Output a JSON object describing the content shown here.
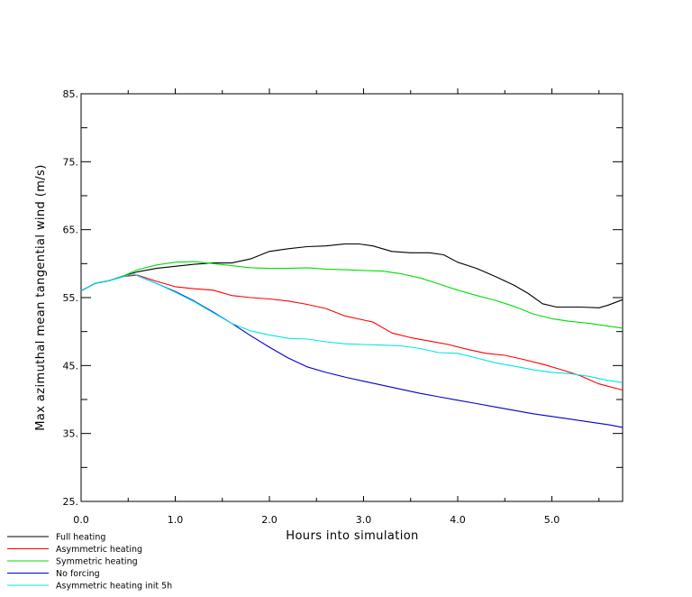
{
  "chart_data": {
    "type": "line",
    "title": "",
    "xlabel": "Hours into simulation",
    "ylabel": "Max azimuthal mean tangential wind (m/s)",
    "xlim": [
      0,
      5.75
    ],
    "ylim": [
      25,
      85
    ],
    "x_tick_labels": [
      "0.0",
      "1.0",
      "2.0",
      "3.0",
      "4.0",
      "5.0"
    ],
    "y_tick_labels": [
      "25.",
      "35.",
      "45.",
      "55.",
      "65.",
      "75.",
      "85."
    ],
    "grid": false,
    "legend_position": "bottom-left",
    "series": [
      {
        "name": "Full heating",
        "color": "#000000",
        "points": [
          [
            0,
            56
          ],
          [
            0.15,
            57.1
          ],
          [
            0.3,
            57.5
          ],
          [
            0.45,
            58.2
          ],
          [
            0.6,
            58.8
          ],
          [
            0.8,
            59.3
          ],
          [
            1.0,
            59.6
          ],
          [
            1.2,
            59.9
          ],
          [
            1.4,
            60.1
          ],
          [
            1.6,
            60.1
          ],
          [
            1.8,
            60.7
          ],
          [
            2.0,
            61.8
          ],
          [
            2.2,
            62.2
          ],
          [
            2.4,
            62.5
          ],
          [
            2.6,
            62.6
          ],
          [
            2.8,
            62.9
          ],
          [
            2.95,
            62.9
          ],
          [
            3.1,
            62.6
          ],
          [
            3.3,
            61.8
          ],
          [
            3.5,
            61.6
          ],
          [
            3.7,
            61.6
          ],
          [
            3.85,
            61.3
          ],
          [
            4.0,
            60.2
          ],
          [
            4.2,
            59.3
          ],
          [
            4.4,
            58.1
          ],
          [
            4.6,
            56.8
          ],
          [
            4.75,
            55.6
          ],
          [
            4.9,
            54.1
          ],
          [
            5.05,
            53.6
          ],
          [
            5.3,
            53.6
          ],
          [
            5.5,
            53.5
          ],
          [
            5.6,
            53.9
          ],
          [
            5.75,
            54.7
          ]
        ]
      },
      {
        "name": "Asymmetric heating",
        "color": "#ff0000",
        "points": [
          [
            0,
            56
          ],
          [
            0.15,
            57.1
          ],
          [
            0.3,
            57.5
          ],
          [
            0.45,
            58.1
          ],
          [
            0.6,
            58.3
          ],
          [
            0.8,
            57.4
          ],
          [
            1.0,
            56.6
          ],
          [
            1.2,
            56.3
          ],
          [
            1.4,
            56.1
          ],
          [
            1.6,
            55.3
          ],
          [
            1.8,
            55.0
          ],
          [
            2.0,
            54.8
          ],
          [
            2.2,
            54.5
          ],
          [
            2.4,
            54.0
          ],
          [
            2.6,
            53.4
          ],
          [
            2.8,
            52.3
          ],
          [
            3.0,
            51.7
          ],
          [
            3.1,
            51.4
          ],
          [
            3.3,
            49.8
          ],
          [
            3.5,
            49.1
          ],
          [
            3.7,
            48.6
          ],
          [
            3.9,
            48.1
          ],
          [
            4.1,
            47.4
          ],
          [
            4.3,
            46.8
          ],
          [
            4.5,
            46.5
          ],
          [
            4.7,
            45.9
          ],
          [
            4.9,
            45.2
          ],
          [
            5.1,
            44.4
          ],
          [
            5.3,
            43.5
          ],
          [
            5.5,
            42.3
          ],
          [
            5.75,
            41.4
          ]
        ]
      },
      {
        "name": "Symmetric heating",
        "color": "#00dd00",
        "points": [
          [
            0,
            56
          ],
          [
            0.15,
            57.1
          ],
          [
            0.3,
            57.5
          ],
          [
            0.45,
            58.2
          ],
          [
            0.6,
            59.1
          ],
          [
            0.8,
            59.8
          ],
          [
            1.0,
            60.2
          ],
          [
            1.2,
            60.3
          ],
          [
            1.4,
            60.0
          ],
          [
            1.6,
            59.7
          ],
          [
            1.8,
            59.4
          ],
          [
            2.0,
            59.3
          ],
          [
            2.2,
            59.3
          ],
          [
            2.4,
            59.4
          ],
          [
            2.6,
            59.2
          ],
          [
            2.8,
            59.1
          ],
          [
            3.0,
            59.0
          ],
          [
            3.2,
            58.9
          ],
          [
            3.4,
            58.5
          ],
          [
            3.6,
            57.9
          ],
          [
            3.8,
            57.0
          ],
          [
            4.0,
            56.1
          ],
          [
            4.2,
            55.3
          ],
          [
            4.4,
            54.6
          ],
          [
            4.6,
            53.7
          ],
          [
            4.8,
            52.6
          ],
          [
            5.0,
            51.9
          ],
          [
            5.2,
            51.5
          ],
          [
            5.4,
            51.2
          ],
          [
            5.6,
            50.8
          ],
          [
            5.75,
            50.5
          ]
        ]
      },
      {
        "name": "No forcing",
        "color": "#0000cc",
        "points": [
          [
            0,
            56
          ],
          [
            0.15,
            57.1
          ],
          [
            0.3,
            57.5
          ],
          [
            0.45,
            58.1
          ],
          [
            0.55,
            58.5
          ],
          [
            0.8,
            57.1
          ],
          [
            1.0,
            55.9
          ],
          [
            1.2,
            54.5
          ],
          [
            1.4,
            52.9
          ],
          [
            1.6,
            51.2
          ],
          [
            1.8,
            49.4
          ],
          [
            2.0,
            47.7
          ],
          [
            2.2,
            46.1
          ],
          [
            2.4,
            44.8
          ],
          [
            2.6,
            44.0
          ],
          [
            2.8,
            43.3
          ],
          [
            3.0,
            42.7
          ],
          [
            3.2,
            42.1
          ],
          [
            3.4,
            41.5
          ],
          [
            3.6,
            40.9
          ],
          [
            3.8,
            40.4
          ],
          [
            4.0,
            39.9
          ],
          [
            4.2,
            39.4
          ],
          [
            4.4,
            38.9
          ],
          [
            4.6,
            38.4
          ],
          [
            4.8,
            37.9
          ],
          [
            5.0,
            37.5
          ],
          [
            5.2,
            37.1
          ],
          [
            5.4,
            36.7
          ],
          [
            5.6,
            36.3
          ],
          [
            5.75,
            35.9
          ]
        ]
      },
      {
        "name": "Asymmetric heating init 5h",
        "color": "#00e5e5",
        "points": [
          [
            0,
            56
          ],
          [
            0.15,
            57.1
          ],
          [
            0.3,
            57.5
          ],
          [
            0.45,
            58.1
          ],
          [
            0.55,
            58.5
          ],
          [
            0.8,
            57.1
          ],
          [
            1.0,
            55.8
          ],
          [
            1.2,
            54.4
          ],
          [
            1.4,
            52.8
          ],
          [
            1.6,
            51.2
          ],
          [
            1.8,
            50.1
          ],
          [
            2.0,
            49.5
          ],
          [
            2.2,
            49.0
          ],
          [
            2.4,
            48.9
          ],
          [
            2.6,
            48.5
          ],
          [
            2.8,
            48.2
          ],
          [
            3.0,
            48.1
          ],
          [
            3.2,
            48.0
          ],
          [
            3.4,
            47.9
          ],
          [
            3.6,
            47.5
          ],
          [
            3.8,
            46.9
          ],
          [
            4.0,
            46.8
          ],
          [
            4.2,
            46.1
          ],
          [
            4.4,
            45.4
          ],
          [
            4.6,
            44.9
          ],
          [
            4.8,
            44.4
          ],
          [
            5.0,
            44.0
          ],
          [
            5.2,
            43.8
          ],
          [
            5.4,
            43.4
          ],
          [
            5.6,
            42.8
          ],
          [
            5.75,
            42.5
          ]
        ]
      }
    ]
  }
}
